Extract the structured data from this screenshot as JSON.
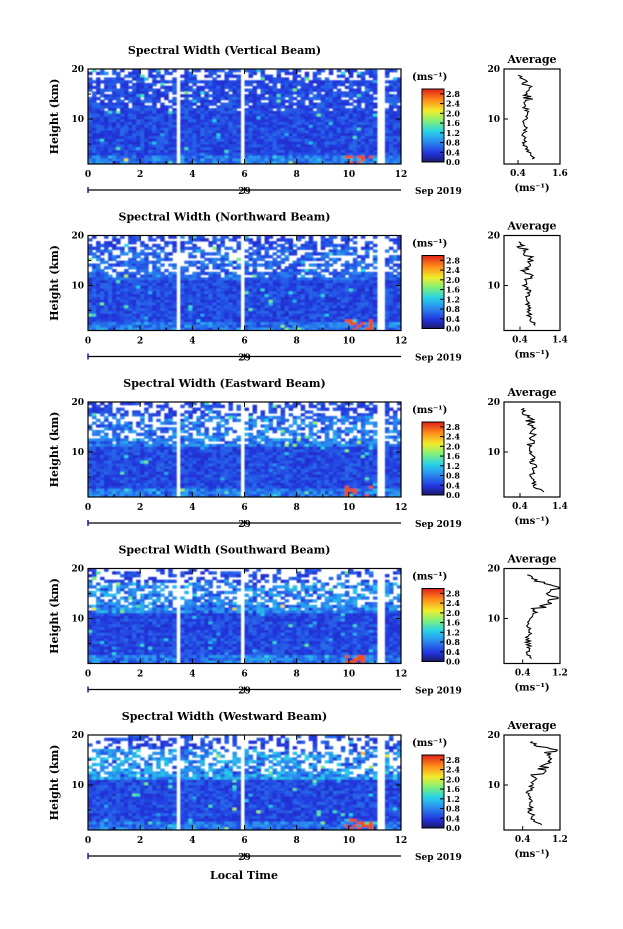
{
  "figure": {
    "x_axis_title": "Local Time",
    "date_suffix": "Sep 2019",
    "day_label": "29",
    "y_axis_label": "Height (km)",
    "colorbar_unit": "(ms⁻¹)",
    "average_title": "Average"
  },
  "chart_data": [
    {
      "type": "heatmap",
      "title": "Spectral Width (Vertical Beam)",
      "xlabel": "",
      "ylabel": "Height (km)",
      "xlim": [
        0,
        12
      ],
      "ylim": [
        1,
        20
      ],
      "x_ticks": [
        0,
        2,
        4,
        6,
        8,
        10,
        12
      ],
      "y_ticks": [
        10,
        20
      ],
      "day_tick": 6,
      "data_gaps_hours": [
        [
          3.35,
          3.6
        ],
        [
          5.85,
          6.0
        ],
        [
          11.1,
          11.45
        ]
      ],
      "colorbar": {
        "ticks": [
          0.0,
          0.4,
          0.8,
          1.2,
          1.6,
          2.0,
          2.4,
          2.8
        ],
        "max": 3.0
      },
      "average": {
        "xlim": [
          0,
          1.6
        ],
        "x_ticks": [
          0.4,
          1.6
        ],
        "ylim": [
          1,
          20
        ],
        "y_ticks": [
          10,
          20
        ],
        "height": [
          2,
          3,
          4,
          5,
          6,
          7,
          8,
          9,
          10,
          11,
          12,
          13,
          14,
          15,
          16,
          17,
          18,
          19
        ],
        "width": [
          0.85,
          0.75,
          0.62,
          0.58,
          0.6,
          0.55,
          0.62,
          0.55,
          0.6,
          0.68,
          0.58,
          0.62,
          0.7,
          0.6,
          0.75,
          0.6,
          0.5,
          0.45
        ]
      }
    },
    {
      "type": "heatmap",
      "title": "Spectral Width (Northward Beam)",
      "xlabel": "",
      "ylabel": "Height (km)",
      "xlim": [
        0,
        12
      ],
      "ylim": [
        1,
        20
      ],
      "x_ticks": [
        0,
        2,
        4,
        6,
        8,
        10,
        12
      ],
      "y_ticks": [
        10,
        20
      ],
      "day_tick": 6,
      "data_gaps_hours": [
        [
          3.35,
          3.6
        ],
        [
          5.85,
          6.0
        ],
        [
          11.1,
          11.45
        ]
      ],
      "colorbar": {
        "ticks": [
          0.0,
          0.4,
          0.8,
          1.2,
          1.6,
          2.0,
          2.4,
          2.8
        ],
        "max": 3.0
      },
      "average": {
        "xlim": [
          0,
          1.4
        ],
        "x_ticks": [
          0.4,
          1.4
        ],
        "ylim": [
          1,
          20
        ],
        "y_ticks": [
          10,
          20
        ],
        "height": [
          2,
          3,
          4,
          5,
          6,
          7,
          8,
          9,
          10,
          11,
          12,
          13,
          14,
          15,
          16,
          17,
          18,
          19
        ],
        "width": [
          0.75,
          0.68,
          0.62,
          0.65,
          0.6,
          0.55,
          0.58,
          0.62,
          0.5,
          0.55,
          0.62,
          0.52,
          0.65,
          0.7,
          0.58,
          0.5,
          0.45,
          0.4
        ]
      }
    },
    {
      "type": "heatmap",
      "title": "Spectral Width (Eastward Beam)",
      "xlabel": "",
      "ylabel": "Height (km)",
      "xlim": [
        0,
        12
      ],
      "ylim": [
        1,
        20
      ],
      "x_ticks": [
        0,
        2,
        4,
        6,
        8,
        10,
        12
      ],
      "y_ticks": [
        10,
        20
      ],
      "day_tick": 6,
      "data_gaps_hours": [
        [
          3.35,
          3.6
        ],
        [
          5.85,
          6.0
        ],
        [
          11.1,
          11.45
        ]
      ],
      "colorbar": {
        "ticks": [
          0.0,
          0.4,
          0.8,
          1.2,
          1.6,
          2.0,
          2.4,
          2.8
        ],
        "max": 3.0
      },
      "average": {
        "xlim": [
          0,
          1.4
        ],
        "x_ticks": [
          0.4,
          1.4
        ],
        "ylim": [
          1,
          20
        ],
        "y_ticks": [
          10,
          20
        ],
        "height": [
          2,
          3,
          4,
          5,
          6,
          7,
          8,
          9,
          10,
          11,
          12,
          13,
          14,
          15,
          16,
          17,
          18,
          19
        ],
        "width": [
          1.0,
          0.8,
          0.75,
          0.7,
          0.72,
          0.78,
          0.7,
          0.72,
          0.65,
          0.62,
          0.7,
          0.68,
          0.72,
          0.75,
          0.7,
          0.55,
          0.5,
          0.45
        ]
      }
    },
    {
      "type": "heatmap",
      "title": "Spectral Width (Southward Beam)",
      "xlabel": "",
      "ylabel": "Height (km)",
      "xlim": [
        0,
        12
      ],
      "ylim": [
        1,
        20
      ],
      "x_ticks": [
        0,
        2,
        4,
        6,
        8,
        10,
        12
      ],
      "y_ticks": [
        10,
        20
      ],
      "day_tick": 6,
      "data_gaps_hours": [
        [
          3.35,
          3.6
        ],
        [
          5.85,
          6.0
        ],
        [
          11.1,
          11.45
        ]
      ],
      "colorbar": {
        "ticks": [
          0.0,
          0.4,
          0.8,
          1.2,
          1.6,
          2.0,
          2.4,
          2.8
        ],
        "max": 3.0
      },
      "average": {
        "xlim": [
          0,
          1.2
        ],
        "x_ticks": [
          0.4,
          1.2
        ],
        "ylim": [
          1,
          20
        ],
        "y_ticks": [
          10,
          20
        ],
        "height": [
          2,
          3,
          4,
          5,
          6,
          7,
          8,
          9,
          10,
          11,
          12,
          13,
          14,
          15,
          16,
          17,
          18,
          19
        ],
        "width": [
          0.6,
          0.5,
          0.55,
          0.52,
          0.5,
          0.55,
          0.52,
          0.5,
          0.55,
          0.6,
          0.7,
          1.0,
          1.1,
          1.0,
          1.15,
          0.9,
          0.6,
          0.5
        ]
      }
    },
    {
      "type": "heatmap",
      "title": "Spectral Width (Westward Beam)",
      "xlabel": "",
      "ylabel": "Height (km)",
      "xlim": [
        0,
        12
      ],
      "ylim": [
        1,
        20
      ],
      "x_ticks": [
        0,
        2,
        4,
        6,
        8,
        10,
        12
      ],
      "y_ticks": [
        10,
        20
      ],
      "day_tick": 6,
      "data_gaps_hours": [
        [
          3.35,
          3.6
        ],
        [
          5.85,
          6.0
        ],
        [
          11.1,
          11.45
        ]
      ],
      "colorbar": {
        "ticks": [
          0.0,
          0.4,
          0.8,
          1.2,
          1.6,
          2.0,
          2.4,
          2.8
        ],
        "max": 3.0
      },
      "average": {
        "xlim": [
          0,
          1.2
        ],
        "x_ticks": [
          0.4,
          1.2
        ],
        "ylim": [
          1,
          20
        ],
        "y_ticks": [
          10,
          20
        ],
        "height": [
          2,
          3,
          4,
          5,
          6,
          7,
          8,
          9,
          10,
          11,
          12,
          13,
          14,
          15,
          16,
          17,
          18,
          19
        ],
        "width": [
          0.78,
          0.65,
          0.6,
          0.55,
          0.58,
          0.55,
          0.52,
          0.55,
          0.6,
          0.65,
          0.7,
          0.8,
          0.95,
          1.0,
          0.85,
          1.05,
          0.7,
          0.55
        ]
      }
    }
  ]
}
